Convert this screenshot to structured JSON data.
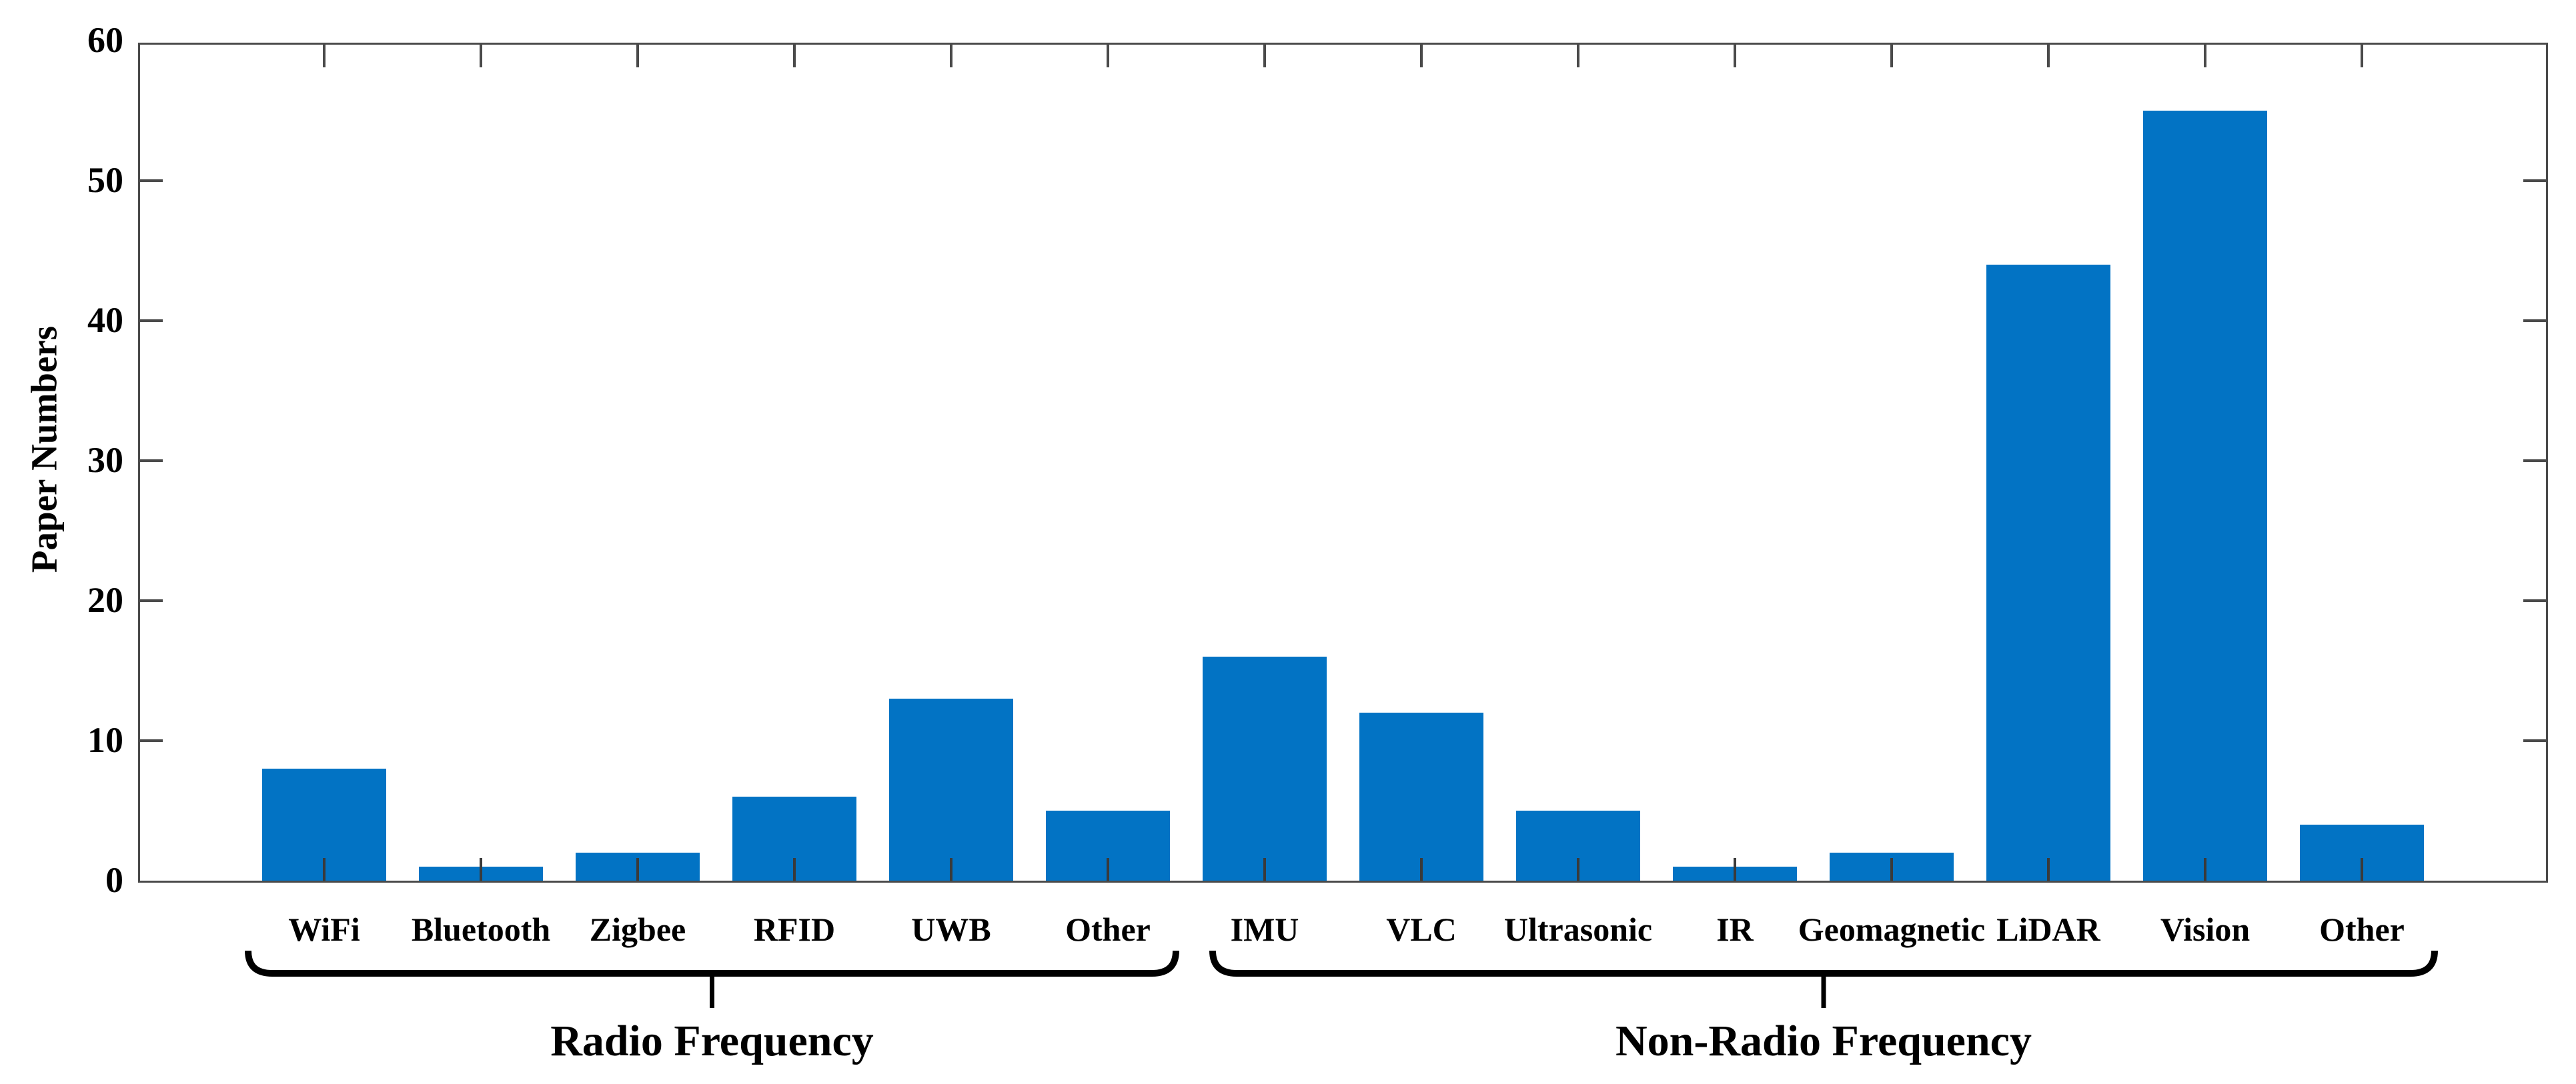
{
  "figure": {
    "background": "#ffffff"
  },
  "chart_data": {
    "type": "bar",
    "title": "",
    "xlabel": "",
    "ylabel": "Paper Numbers",
    "ylim": [
      0,
      60
    ],
    "yticks": [
      "0",
      "10",
      "20",
      "30",
      "40",
      "50",
      "60"
    ],
    "grid": false,
    "legend": null,
    "bar_color": "#0273c4",
    "axis_color": "#4a4a4a",
    "tick_color": "#3a3a3a",
    "text_color": "#000000",
    "categories": [
      "WiFi",
      "Bluetooth",
      "Zigbee",
      "RFID",
      "UWB",
      "Other",
      "IMU",
      "VLC",
      "Ultrasonic",
      "IR",
      "Geomagnetic",
      "LiDAR",
      "Vision",
      "Other"
    ],
    "values": [
      8,
      1,
      2,
      6,
      13,
      5,
      16,
      12,
      5,
      1,
      2,
      44,
      55,
      4
    ],
    "groups": [
      {
        "label": "Radio Frequency",
        "start": 0,
        "end": 5
      },
      {
        "label": "Non-Radio Frequency",
        "start": 6,
        "end": 13
      }
    ]
  }
}
